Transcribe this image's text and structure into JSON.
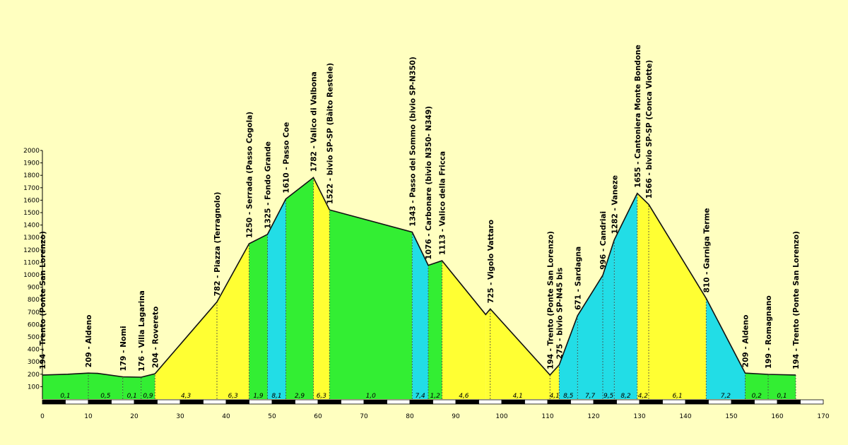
{
  "chart_data": {
    "type": "area",
    "xlim": [
      0,
      170
    ],
    "ylim": [
      0,
      2000
    ],
    "x_ticks": [
      0,
      10,
      20,
      30,
      40,
      50,
      60,
      70,
      80,
      90,
      100,
      110,
      120,
      130,
      140,
      150,
      160,
      170
    ],
    "y_ticks": [
      100,
      200,
      300,
      400,
      500,
      600,
      700,
      800,
      900,
      1000,
      1100,
      1200,
      1300,
      1400,
      1500,
      1600,
      1700,
      1800,
      1900,
      2000
    ],
    "grid": false,
    "profile": [
      [
        0,
        194
      ],
      [
        5.5,
        200
      ],
      [
        10,
        209
      ],
      [
        12,
        207
      ],
      [
        17.5,
        179
      ],
      [
        21.5,
        176
      ],
      [
        24.5,
        204
      ],
      [
        38,
        782
      ],
      [
        45,
        1250
      ],
      [
        49,
        1325
      ],
      [
        53,
        1610
      ],
      [
        59,
        1782
      ],
      [
        62.5,
        1522
      ],
      [
        80.5,
        1343
      ],
      [
        84,
        1076
      ],
      [
        87,
        1113
      ],
      [
        96.5,
        680
      ],
      [
        97.5,
        725
      ],
      [
        110.5,
        194
      ],
      [
        112.5,
        275
      ],
      [
        116.5,
        671
      ],
      [
        122,
        996
      ],
      [
        124.5,
        1282
      ],
      [
        129.5,
        1655
      ],
      [
        132,
        1566
      ],
      [
        144.5,
        810
      ],
      [
        153,
        209
      ],
      [
        158,
        199
      ],
      [
        164,
        194
      ]
    ],
    "segments": [
      {
        "from": 0,
        "to": 10,
        "color": "#33ee33",
        "gradient": "0,1"
      },
      {
        "from": 10,
        "to": 17.5,
        "color": "#33ee33",
        "gradient": "0,5"
      },
      {
        "from": 17.5,
        "to": 21.5,
        "color": "#33ee33",
        "gradient": "0,1"
      },
      {
        "from": 21.5,
        "to": 24.5,
        "color": "#33ee33",
        "gradient": "0,9"
      },
      {
        "from": 24.5,
        "to": 38,
        "color": "#ffff33",
        "gradient": "4,3"
      },
      {
        "from": 38,
        "to": 45,
        "color": "#ffff33",
        "gradient": "6,3"
      },
      {
        "from": 45,
        "to": 49,
        "color": "#33ee33",
        "gradient": "1,9"
      },
      {
        "from": 49,
        "to": 53,
        "color": "#22dde6",
        "gradient": "8,1"
      },
      {
        "from": 53,
        "to": 59,
        "color": "#33ee33",
        "gradient": "2,9"
      },
      {
        "from": 59,
        "to": 62.5,
        "color": "#ffff33",
        "gradient": "6,3"
      },
      {
        "from": 62.5,
        "to": 80.5,
        "color": "#33ee33",
        "gradient": "1,0"
      },
      {
        "from": 80.5,
        "to": 84,
        "color": "#22dde6",
        "gradient": "7,4"
      },
      {
        "from": 84,
        "to": 87,
        "color": "#33ee33",
        "gradient": "1,2"
      },
      {
        "from": 87,
        "to": 96.5,
        "color": "#ffff33",
        "gradient": "4,6"
      },
      {
        "from": 96.5,
        "to": 110.5,
        "color": "#ffff33",
        "gradient": "4,1"
      },
      {
        "from": 110.5,
        "to": 112.5,
        "color": "#ffff33",
        "gradient": "4,1"
      },
      {
        "from": 112.5,
        "to": 116.5,
        "color": "#22dde6",
        "gradient": "8,5"
      },
      {
        "from": 116.5,
        "to": 122,
        "color": "#22dde6",
        "gradient": "7,7"
      },
      {
        "from": 122,
        "to": 124.5,
        "color": "#22dde6",
        "gradient": "9,5"
      },
      {
        "from": 124.5,
        "to": 129.5,
        "color": "#22dde6",
        "gradient": "8,2"
      },
      {
        "from": 129.5,
        "to": 132,
        "color": "#ffff33",
        "gradient": "4,2"
      },
      {
        "from": 132,
        "to": 144.5,
        "color": "#ffff33",
        "gradient": "6,1"
      },
      {
        "from": 144.5,
        "to": 153,
        "color": "#22dde6",
        "gradient": "7,2"
      },
      {
        "from": 153,
        "to": 158,
        "color": "#33ee33",
        "gradient": "0,2"
      },
      {
        "from": 158,
        "to": 164,
        "color": "#33ee33",
        "gradient": "0,1"
      }
    ],
    "waypoints": [
      {
        "x": 0,
        "label": "194  -  Trento (Ponte San Lorenzo)"
      },
      {
        "x": 10,
        "label": "209  -  Aldeno"
      },
      {
        "x": 17.5,
        "label": "179  -  Nomi"
      },
      {
        "x": 21.5,
        "label": "176  -  Villa Lagarina"
      },
      {
        "x": 24.5,
        "label": "204  -  Rovereto"
      },
      {
        "x": 38,
        "label": "782  -  Piazza (Terragnolo)"
      },
      {
        "x": 45,
        "label": "1250  -  Serrada (Passo Cogola)"
      },
      {
        "x": 49,
        "label": "1325  -  Fondo Grande"
      },
      {
        "x": 53,
        "label": "1610  -  Passo Coe"
      },
      {
        "x": 59,
        "label": "1782  -  Valico di Valbona"
      },
      {
        "x": 62.5,
        "label": "1522  -  bivio SP-SP (Bàito Restele)"
      },
      {
        "x": 80.5,
        "label": "1343  -  Passo del Sommo (bivio SP-N350)"
      },
      {
        "x": 84,
        "label": "1076  -  Carbonare (bivio N350- N349)"
      },
      {
        "x": 87,
        "label": "1113  -  Valico della Fricca"
      },
      {
        "x": 97.5,
        "label": "725  -  Vigolo Vattaro"
      },
      {
        "x": 110.5,
        "label": "194  -  Trento (Ponte San Lorenzo)"
      },
      {
        "x": 112.5,
        "label": "275  -  bivio SP-N45 bis"
      },
      {
        "x": 116.5,
        "label": "671  -  Sardagna"
      },
      {
        "x": 122,
        "label": "996  -  Candriai"
      },
      {
        "x": 124.5,
        "label": "1282  -  Vaneze"
      },
      {
        "x": 129.5,
        "label": "1655  -  Cantoniera Monte Bondone"
      },
      {
        "x": 132,
        "label": "1566  -  bivio SP-SP (Conca Viotte)"
      },
      {
        "x": 144.5,
        "label": "810  -  Garniga Terme"
      },
      {
        "x": 153,
        "label": "209  -  Aldeno"
      },
      {
        "x": 158,
        "label": "199  -  Romagnano"
      },
      {
        "x": 164,
        "label": "194  -  Trento (Ponte San Lorenzo)"
      }
    ]
  }
}
